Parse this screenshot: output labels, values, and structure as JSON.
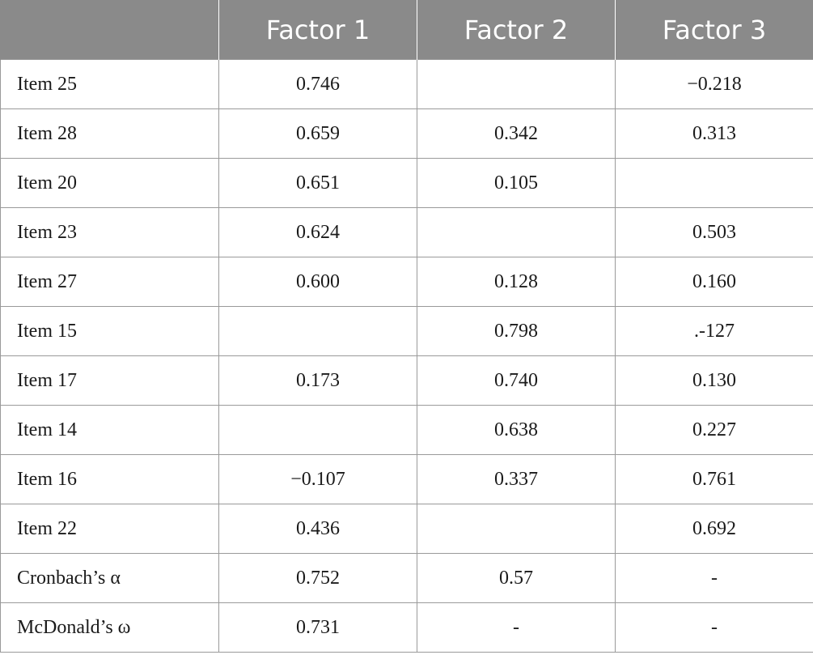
{
  "table": {
    "headers": [
      "",
      "Factor 1",
      "Factor 2",
      "Factor 3"
    ],
    "rows": [
      [
        "Item 25",
        "0.746",
        "",
        "−0.218"
      ],
      [
        "Item 28",
        "0.659",
        "0.342",
        "0.313"
      ],
      [
        "Item 20",
        "0.651",
        "0.105",
        ""
      ],
      [
        "Item 23",
        "0.624",
        "",
        "0.503"
      ],
      [
        "Item 27",
        "0.600",
        "0.128",
        "0.160"
      ],
      [
        "Item 15",
        "",
        "0.798",
        ".-127"
      ],
      [
        "Item 17",
        "0.173",
        "0.740",
        "0.130"
      ],
      [
        "Item 14",
        "",
        "0.638",
        "0.227"
      ],
      [
        "Item 16",
        "−0.107",
        "0.337",
        "0.761"
      ],
      [
        "Item 22",
        "0.436",
        "",
        "0.692"
      ],
      [
        "Cronbach’s α",
        "0.752",
        "0.57",
        "-"
      ],
      [
        "McDonald’s ω",
        "0.731",
        "-",
        "-"
      ]
    ]
  }
}
